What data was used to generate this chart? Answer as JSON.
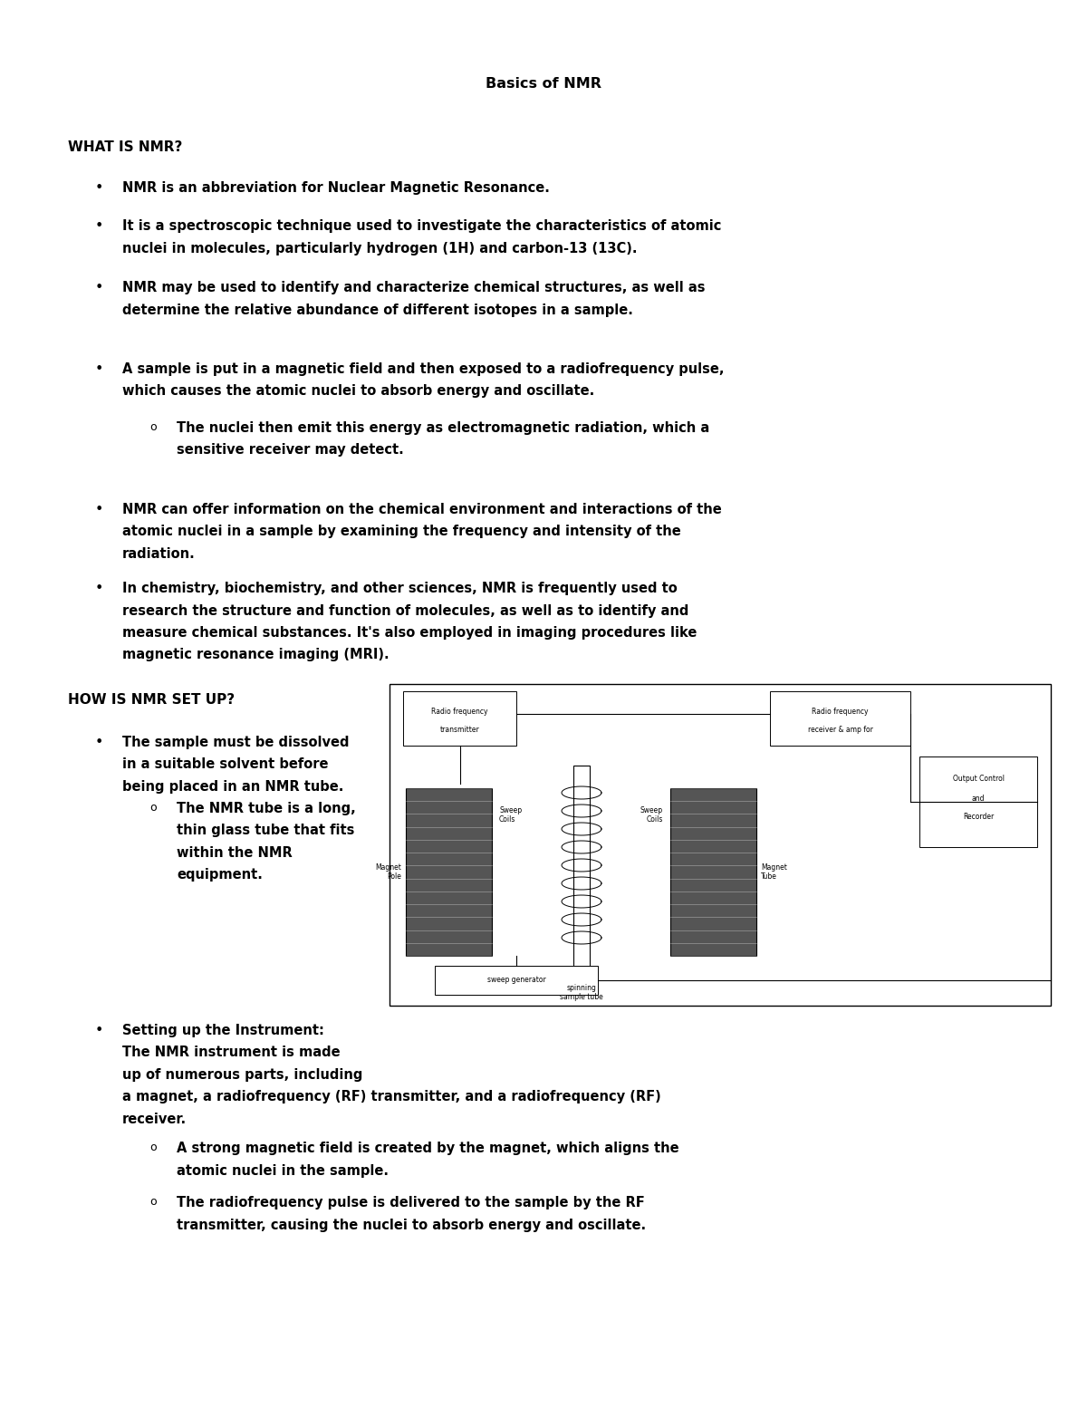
{
  "title": "Basics of NMR",
  "background_color": "#ffffff",
  "text_color": "#000000",
  "section1_header": "WHAT IS NMR?",
  "section2_header": "HOW IS NMR SET UP?",
  "bullet1": "NMR is an abbreviation for Nuclear Magnetic Resonance.",
  "bullet2_line1": "It is a spectroscopic technique used to investigate the characteristics of atomic",
  "bullet2_line2": "nuclei in molecules, particularly hydrogen (1H) and carbon-13 (13C).",
  "bullet3_line1": "NMR may be used to identify and characterize chemical structures, as well as",
  "bullet3_line2": "determine the relative abundance of different isotopes in a sample.",
  "bullet4_line1": "A sample is put in a magnetic field and then exposed to a radiofrequency pulse,",
  "bullet4_line2": "which causes the atomic nuclei to absorb energy and oscillate.",
  "sub_bullet4_line1": "The nuclei then emit this energy as electromagnetic radiation, which a",
  "sub_bullet4_line2": "sensitive receiver may detect.",
  "bullet5_line1": "NMR can offer information on the chemical environment and interactions of the",
  "bullet5_line2": "atomic nuclei in a sample by examining the frequency and intensity of the",
  "bullet5_line3": "radiation.",
  "bullet6_line1": "In chemistry, biochemistry, and other sciences, NMR is frequently used to",
  "bullet6_line2": "research the structure and function of molecules, as well as to identify and",
  "bullet6_line3": "measure chemical substances. It's also employed in imaging procedures like",
  "bullet6_line4": "magnetic resonance imaging (MRI).",
  "sec2_bullet1_line1": "The sample must be dissolved",
  "sec2_bullet1_line2": "in a suitable solvent before",
  "sec2_bullet1_line3": "being placed in an NMR tube.",
  "sec2_sub_bullet1_line1": "The NMR tube is a long,",
  "sec2_sub_bullet1_line2": "thin glass tube that fits",
  "sec2_sub_bullet1_line3": "within the NMR",
  "sec2_sub_bullet1_line4": "equipment.",
  "sec2_bullet2_line1": "Setting up the Instrument:",
  "sec2_bullet2_line2": "The NMR instrument is made",
  "sec2_bullet2_line3": "up of numerous parts, including",
  "sec2_bullet2_line4": "a magnet, a radiofrequency (RF) transmitter, and a radiofrequency (RF)",
  "sec2_bullet2_line5": "receiver.",
  "sec2_sub_bullet2a_line1": "A strong magnetic field is created by the magnet, which aligns the",
  "sec2_sub_bullet2a_line2": "atomic nuclei in the sample.",
  "sec2_sub_bullet2b_line1": "The radiofrequency pulse is delivered to the sample by the RF",
  "sec2_sub_bullet2b_line2": "transmitter, causing the nuclei to absorb energy and oscillate.",
  "diag_rftx_line1": "Radio frequency",
  "diag_rftx_line2": "transmitter",
  "diag_rfrx_line1": "Radio frequency",
  "diag_rfrx_line2": "receiver & amp for",
  "diag_sweep_coil_left": "Sweep\nCoils",
  "diag_sweep_coil_right": "Sweep\nCoils",
  "diag_magnet_pole": "Magnet\nPole",
  "diag_magnet_tube": "Magnet\nTube",
  "diag_output_line1": "Output Control",
  "diag_output_line2": "and",
  "diag_output_line3": "Recorder",
  "diag_spinning": "spinning\nsample tube",
  "diag_sweep_gen": "sweep generator"
}
